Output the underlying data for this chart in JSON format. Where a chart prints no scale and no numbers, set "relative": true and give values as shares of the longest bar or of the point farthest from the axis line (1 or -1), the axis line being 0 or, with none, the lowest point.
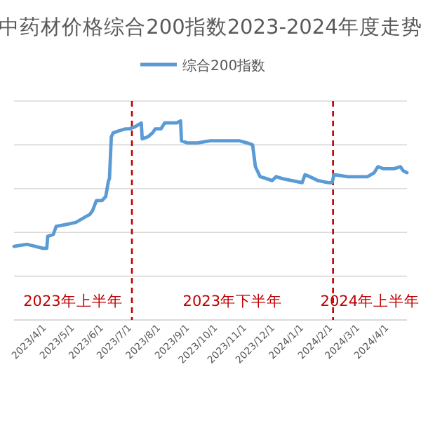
{
  "chart_data": {
    "type": "line",
    "title": "中药材价格综合200指数2023-2024年度走势",
    "relative": true,
    "grid": "y",
    "legend": "top",
    "marker": "none",
    "line_style": "solid",
    "x": [
      "2023-02-25",
      "2023-03-11",
      "2023-03-28",
      "2023-04-01",
      "2023-04-02",
      "2023-04-08",
      "2023-04-11",
      "2023-04-22",
      "2023-05-02",
      "2023-05-13",
      "2023-05-17",
      "2023-05-20",
      "2023-05-24",
      "2023-05-30",
      "2023-06-03",
      "2023-06-06",
      "2023-06-07",
      "2023-06-09",
      "2023-06-11",
      "2023-06-17",
      "2023-06-24",
      "2023-06-28",
      "2023-07-04",
      "2023-07-11",
      "2023-07-12",
      "2023-07-18",
      "2023-07-23",
      "2023-07-26",
      "2023-08-01",
      "2023-08-05",
      "2023-08-09",
      "2023-08-18",
      "2023-08-22",
      "2023-08-23",
      "2023-08-29",
      "2023-09-09",
      "2023-09-23",
      "2023-10-07",
      "2023-10-24",
      "2023-11-01",
      "2023-11-07",
      "2023-11-10",
      "2023-11-15",
      "2023-11-22",
      "2023-11-28",
      "2023-12-02",
      "2023-12-09",
      "2023-12-19",
      "2023-12-30",
      "2024-01-02",
      "2024-01-07",
      "2024-01-16",
      "2024-01-27",
      "2024-01-31",
      "2024-02-02",
      "2024-02-17",
      "2024-03-09",
      "2024-03-16",
      "2024-03-20",
      "2024-03-26",
      "2024-04-06",
      "2024-04-13",
      "2024-04-16",
      "2024-04-20"
    ],
    "series": [
      {
        "name": "综合200指数",
        "color": "#5b9bd5",
        "values": [
          0.37,
          0.38,
          0.36,
          0.36,
          0.42,
          0.43,
          0.47,
          0.48,
          0.49,
          0.52,
          0.53,
          0.55,
          0.6,
          0.6,
          0.62,
          0.7,
          0.71,
          0.92,
          0.94,
          0.95,
          0.96,
          0.96,
          0.97,
          0.99,
          0.91,
          0.92,
          0.94,
          0.96,
          0.96,
          0.99,
          0.99,
          0.99,
          1.0,
          0.9,
          0.89,
          0.89,
          0.9,
          0.9,
          0.9,
          0.89,
          0.88,
          0.77,
          0.72,
          0.71,
          0.7,
          0.72,
          0.71,
          0.7,
          0.69,
          0.73,
          0.72,
          0.7,
          0.69,
          0.69,
          0.73,
          0.72,
          0.72,
          0.74,
          0.77,
          0.76,
          0.76,
          0.77,
          0.75,
          0.74
        ]
      }
    ],
    "xlim": [
      "2023-02-25",
      "2024-04-20"
    ],
    "xticks": [
      {
        "value": "2023-04-01",
        "label": "2023/4/1"
      },
      {
        "value": "2023-05-01",
        "label": "2023/5/1"
      },
      {
        "value": "2023-06-01",
        "label": "2023/6/1"
      },
      {
        "value": "2023-07-01",
        "label": "2023/7/1"
      },
      {
        "value": "2023-08-01",
        "label": "2023/8/1"
      },
      {
        "value": "2023-09-01",
        "label": "2023/9/1"
      },
      {
        "value": "2023-10-01",
        "label": "2023/10/1"
      },
      {
        "value": "2023-11-01",
        "label": "2023/11/1"
      },
      {
        "value": "2023-12-01",
        "label": "2023/12/1"
      },
      {
        "value": "2024-01-01",
        "label": "2024/1/1"
      },
      {
        "value": "2024-02-01",
        "label": "2024/2/1"
      },
      {
        "value": "2024-03-01",
        "label": "2024/3/1"
      },
      {
        "value": "2024-04-01",
        "label": "2024/4/1"
      }
    ],
    "ref_lines": [
      {
        "axis": "x",
        "value": "2023-07-01",
        "color": "#c00000",
        "line_style": "dashed"
      },
      {
        "axis": "x",
        "value": "2024-02-01",
        "color": "#c00000",
        "line_style": "dashed"
      }
    ],
    "annotations": [
      "2023年上半年",
      "2023年下半年",
      "2024年上半年"
    ]
  }
}
